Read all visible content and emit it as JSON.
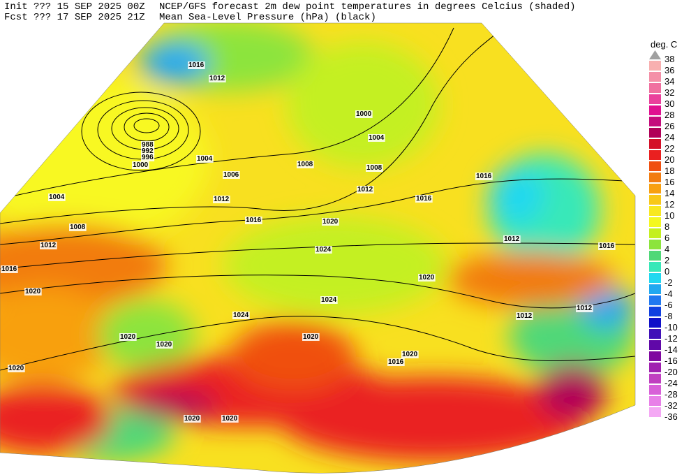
{
  "header": {
    "init": "Init  ??? 15 SEP 2025 00Z",
    "fcst": "Fcst ??? 17 SEP 2025 21Z",
    "title": "NCEP/GFS forecast 2m dew point temperatures in degrees Celcius (shaded)",
    "subtitle": "Mean Sea-Level Pressure (hPa) (black)"
  },
  "legend": {
    "title": "deg. C",
    "items": [
      {
        "value": 38,
        "color": "#a0a0a0"
      },
      {
        "value": 36,
        "color": "#f8b0b0"
      },
      {
        "value": 34,
        "color": "#f490a8"
      },
      {
        "value": 32,
        "color": "#f070a0"
      },
      {
        "value": 30,
        "color": "#ea409c"
      },
      {
        "value": 28,
        "color": "#e01090"
      },
      {
        "value": 26,
        "color": "#c40c7c"
      },
      {
        "value": 24,
        "color": "#b00058"
      },
      {
        "value": 22,
        "color": "#d41028"
      },
      {
        "value": 20,
        "color": "#ea2020"
      },
      {
        "value": 18,
        "color": "#f05010"
      },
      {
        "value": 16,
        "color": "#f27c10"
      },
      {
        "value": 14,
        "color": "#f8a010"
      },
      {
        "value": 12,
        "color": "#f8c818"
      },
      {
        "value": 10,
        "color": "#f8e820"
      },
      {
        "value": 8,
        "color": "#f4f820"
      },
      {
        "value": 6,
        "color": "#c4f020"
      },
      {
        "value": 4,
        "color": "#8ce43c"
      },
      {
        "value": 2,
        "color": "#50d878"
      },
      {
        "value": 0,
        "color": "#38e8b8"
      },
      {
        "value": -2,
        "color": "#20d8f0"
      },
      {
        "value": -4,
        "color": "#20a8f0"
      },
      {
        "value": -6,
        "color": "#2078f0"
      },
      {
        "value": -8,
        "color": "#1040e0"
      },
      {
        "value": -10,
        "color": "#1010c8"
      },
      {
        "value": -12,
        "color": "#4010b8"
      },
      {
        "value": -14,
        "color": "#6008a8"
      },
      {
        "value": -16,
        "color": "#8008a0"
      },
      {
        "value": -20,
        "color": "#a020b0"
      },
      {
        "value": -24,
        "color": "#c040c0"
      },
      {
        "value": -28,
        "color": "#d860d8"
      },
      {
        "value": -32,
        "color": "#e880e8"
      },
      {
        "value": -36,
        "color": "#f4a8f4"
      }
    ]
  },
  "isobar_labels": [
    "1016",
    "1012",
    "988",
    "992",
    "996",
    "1000",
    "1004",
    "1004",
    "1006",
    "1008",
    "1012",
    "1012",
    "1016",
    "1016",
    "1000",
    "1004",
    "1008",
    "1008",
    "1012",
    "1016",
    "1016",
    "1020",
    "1024",
    "1020",
    "1020",
    "1024",
    "1024",
    "1020",
    "1020",
    "1020",
    "1020",
    "1012",
    "1016",
    "1012",
    "1012",
    "1016",
    "1020",
    "1020",
    "1020"
  ]
}
